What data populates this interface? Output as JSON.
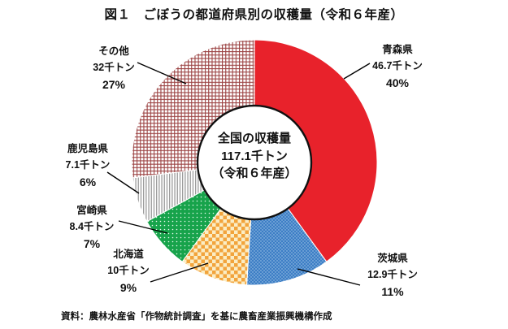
{
  "figure": {
    "title": "図１　ごぼうの都道府県別の収穫量（令和６年産）",
    "source_note": "資料：農林水産省「作物統計調査」を基に農畜産業振興機構作成"
  },
  "donut_center": {
    "line1": "全国の収穫量",
    "line2": "117.1千トン",
    "line3": "（令和６年産）"
  },
  "chart_data": {
    "type": "pie",
    "variant": "donut",
    "title": "図１　ごぼうの都道府県別の収穫量（令和６年産）",
    "center_label": "全国の収穫量 117.1千トン（令和６年産）",
    "total_value": 117.1,
    "unit": "千トン",
    "start_angle_deg": 0,
    "direction": "clockwise",
    "legend_position": "outside-callout-labels",
    "slices": [
      {
        "key": "aomori",
        "label": "青森県",
        "value": 46.7,
        "amount_label": "46.7千トン",
        "percent": 40,
        "percent_label": "40%",
        "fill_style": "solid-red",
        "color": "#e8222b"
      },
      {
        "key": "ibaraki",
        "label": "茨城県",
        "value": 12.9,
        "amount_label": "12.9千トン",
        "percent": 11,
        "percent_label": "11%",
        "fill_style": "blue-dots",
        "color": "#3d7ec5"
      },
      {
        "key": "hokkaido",
        "label": "北海道",
        "value": 10,
        "amount_label": "10千トン",
        "percent": 9,
        "percent_label": "9%",
        "fill_style": "orange-checker",
        "color": "#f2a43c"
      },
      {
        "key": "miyazaki",
        "label": "宮崎県",
        "value": 8.4,
        "amount_label": "8.4千トン",
        "percent": 7,
        "percent_label": "7%",
        "fill_style": "green-dots",
        "color": "#17a34b"
      },
      {
        "key": "kagoshima",
        "label": "鹿児島県",
        "value": 7.1,
        "amount_label": "7.1千トン",
        "percent": 6,
        "percent_label": "6%",
        "fill_style": "gray-stripes",
        "color": "#9b9b9b"
      },
      {
        "key": "others",
        "label": "その他",
        "value": 32,
        "amount_label": "32千トン",
        "percent": 27,
        "percent_label": "27%",
        "fill_style": "maroon-grid",
        "color": "#a04848"
      }
    ]
  }
}
